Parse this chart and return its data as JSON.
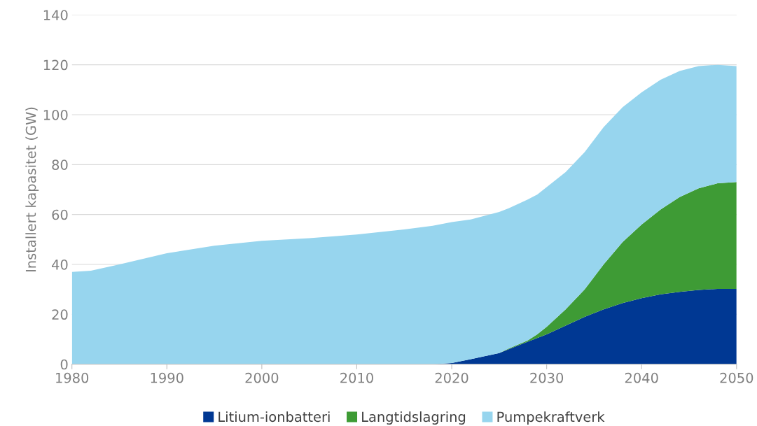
{
  "chart_data": {
    "type": "area",
    "stacked": true,
    "ylabel": "Installert kapasitet (GW)",
    "x": [
      1980,
      1982,
      1985,
      1990,
      1995,
      2000,
      2005,
      2010,
      2015,
      2018,
      2020,
      2022,
      2025,
      2026,
      2028,
      2029,
      2030,
      2032,
      2034,
      2036,
      2038,
      2040,
      2042,
      2044,
      2046,
      2048,
      2050
    ],
    "series": [
      {
        "name": "Litium-ionbatteri",
        "color": "#003893",
        "values": [
          0,
          0,
          0,
          0,
          0,
          0,
          0,
          0,
          0,
          0,
          0.5,
          2,
          4.5,
          6,
          9,
          10.5,
          12,
          15.5,
          19,
          22,
          24.5,
          26.5,
          28,
          29,
          29.8,
          30.2,
          30.2
        ]
      },
      {
        "name": "Langtidslagring",
        "color": "#3e9b35",
        "values": [
          0,
          0,
          0,
          0,
          0,
          0,
          0,
          0,
          0,
          0,
          0,
          0,
          0,
          0.3,
          0.5,
          1.5,
          3,
          6.5,
          11,
          18,
          24.5,
          29.5,
          34,
          38,
          40.7,
          42.3,
          42.8
        ]
      },
      {
        "name": "Pumpekraftverk",
        "color": "#97d5ee",
        "values": [
          37,
          37.5,
          40,
          44.5,
          47.5,
          49.5,
          50.5,
          52,
          54,
          55.5,
          56.5,
          56,
          56.5,
          56.2,
          56.5,
          56,
          56,
          55,
          55,
          55,
          54,
          53,
          52,
          50.5,
          49,
          47.5,
          46.5
        ]
      }
    ],
    "xlim": [
      1980,
      2050
    ],
    "xticks": [
      1980,
      1990,
      2000,
      2010,
      2020,
      2030,
      2040,
      2050
    ],
    "ylim": [
      0,
      140
    ],
    "yticks": [
      0,
      20,
      40,
      60,
      80,
      100,
      120,
      140
    ],
    "grid": "y",
    "legend": "bottom"
  }
}
